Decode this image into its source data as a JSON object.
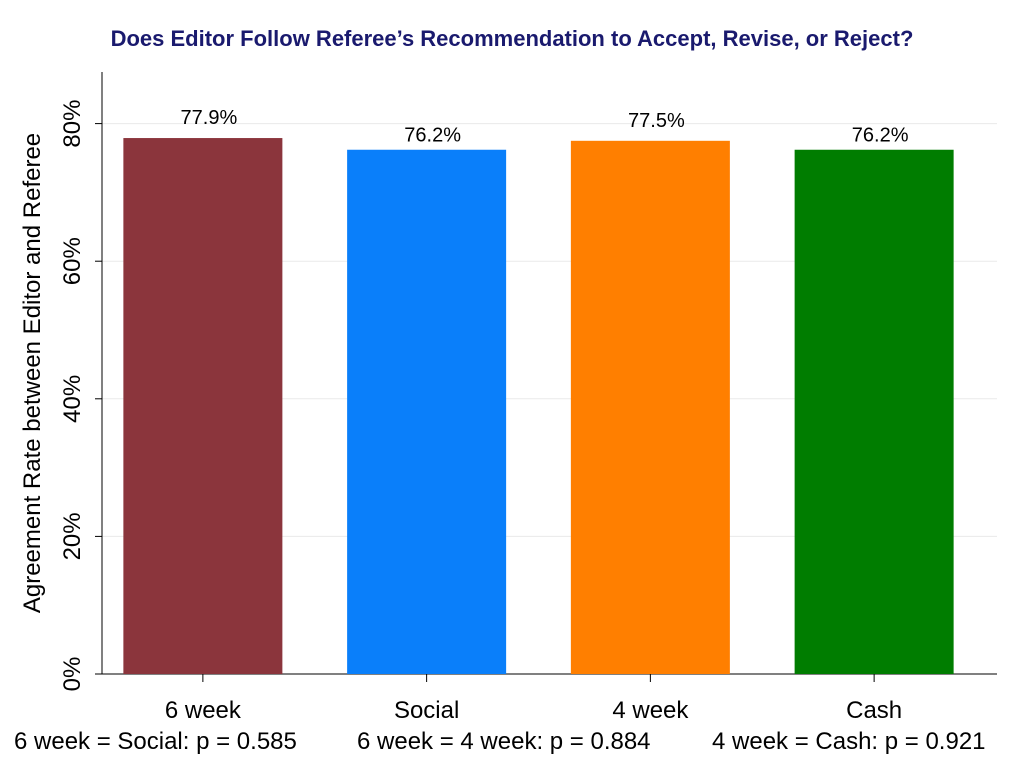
{
  "chart_data": {
    "type": "bar",
    "title": "Does Editor Follow Referee’s Recommendation to Accept, Revise, or Reject?",
    "ylabel": "Agreement Rate between Editor and Referee",
    "xlabel": "",
    "categories": [
      "6 week",
      "Social",
      "4 week",
      "Cash"
    ],
    "values": [
      77.9,
      76.2,
      77.5,
      76.2
    ],
    "value_labels": [
      "77.9%",
      "76.2%",
      "77.5%",
      "76.2%"
    ],
    "colors": [
      "#8b353c",
      "#0a7ffa",
      "#ff7f00",
      "#007d00"
    ],
    "ylim": [
      0,
      87.5
    ],
    "yticks": [
      0,
      20,
      40,
      60,
      80
    ],
    "ytick_labels": [
      "0%",
      "20%",
      "40%",
      "60%",
      "80%"
    ],
    "grid": true,
    "legend": "none",
    "annotations": [
      "6 week = Social: p = 0.585",
      "6 week = 4 week: p = 0.884",
      "4 week = Cash: p = 0.921"
    ]
  }
}
